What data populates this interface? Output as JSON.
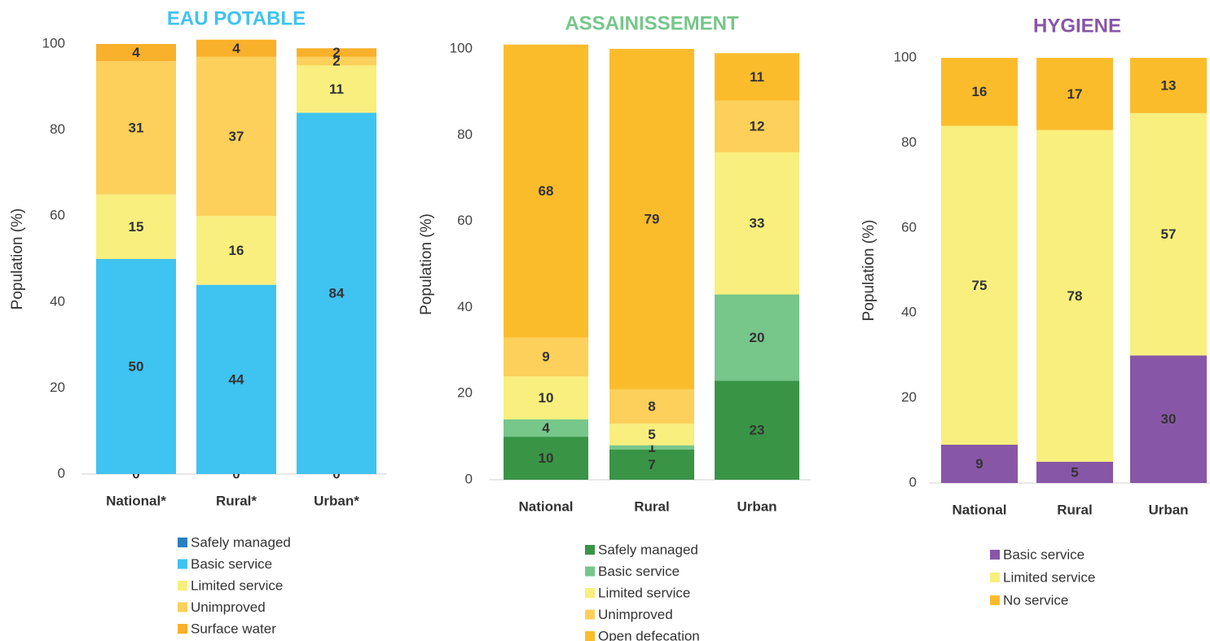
{
  "chart_data": [
    {
      "type": "bar",
      "stacked": true,
      "title": "EAU POTABLE",
      "title_color": "#3fc3f0",
      "y_label": "Population (%)",
      "categories": [
        "National*",
        "Rural*",
        "Urban*"
      ],
      "series": [
        {
          "name": "Safely managed",
          "color": "#2a7fc0",
          "values": [
            0,
            0,
            0
          ]
        },
        {
          "name": "Basic service",
          "color": "#3fc3f0",
          "values": [
            50,
            44,
            84
          ]
        },
        {
          "name": "Limited service",
          "color": "#f8ef7e",
          "values": [
            15,
            16,
            11
          ]
        },
        {
          "name": "Unimproved",
          "color": "#fcd05a",
          "values": [
            31,
            37,
            2
          ]
        },
        {
          "name": "Surface water",
          "color": "#f9b02a",
          "values": [
            4,
            4,
            2
          ]
        }
      ],
      "ylim": [
        0,
        100
      ],
      "yticks": [
        0,
        20,
        40,
        60,
        80,
        100
      ]
    },
    {
      "type": "bar",
      "stacked": true,
      "title": "ASSAINISSEMENT",
      "title_color": "#77c68a",
      "y_label": "Population (%)",
      "categories": [
        "National",
        "Rural",
        "Urban"
      ],
      "series": [
        {
          "name": "Safely managed",
          "color": "#3a9446",
          "values": [
            10,
            7,
            23
          ]
        },
        {
          "name": "Basic service",
          "color": "#77c68a",
          "values": [
            4,
            1,
            20
          ]
        },
        {
          "name": "Limited service",
          "color": "#f8ef7e",
          "values": [
            10,
            5,
            33
          ]
        },
        {
          "name": "Unimproved",
          "color": "#fcd05a",
          "values": [
            9,
            8,
            12
          ]
        },
        {
          "name": "Open defecation",
          "color": "#fbbc2c",
          "values": [
            68,
            79,
            11
          ]
        }
      ],
      "ylim": [
        0,
        100
      ],
      "yticks": [
        0,
        20,
        40,
        60,
        80,
        100
      ]
    },
    {
      "type": "bar",
      "stacked": true,
      "title": "HYGIENE",
      "title_color": "#8856a7",
      "y_label": "Population (%)",
      "categories": [
        "National",
        "Rural",
        "Urban"
      ],
      "series": [
        {
          "name": "Basic service",
          "color": "#8856a7",
          "values": [
            9,
            5,
            30
          ]
        },
        {
          "name": "Limited service",
          "color": "#f8ef7e",
          "values": [
            75,
            78,
            57
          ]
        },
        {
          "name": "No service",
          "color": "#fbbc2c",
          "values": [
            16,
            17,
            13
          ]
        }
      ],
      "ylim": [
        0,
        100
      ],
      "yticks": [
        0,
        20,
        40,
        60,
        80,
        100
      ]
    }
  ]
}
